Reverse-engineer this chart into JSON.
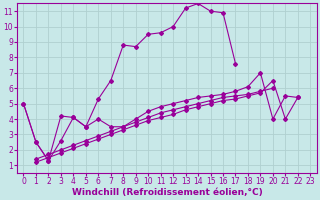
{
  "background_color": "#c8e8e8",
  "line_color": "#990099",
  "grid_color": "#b0d0d0",
  "xlabel": "Windchill (Refroidissement éolien,°C)",
  "xlabel_fontsize": 6.5,
  "tick_fontsize": 5.5,
  "xlim": [
    -0.5,
    23.5
  ],
  "ylim": [
    0.5,
    11.5
  ],
  "yticks": [
    1,
    2,
    3,
    4,
    5,
    6,
    7,
    8,
    9,
    10,
    11
  ],
  "xticks": [
    0,
    1,
    2,
    3,
    4,
    5,
    6,
    7,
    8,
    9,
    10,
    11,
    12,
    13,
    14,
    15,
    16,
    17,
    18,
    19,
    20,
    21,
    22,
    23
  ],
  "series1_x": [
    0,
    1,
    2,
    3,
    4,
    5,
    6,
    7,
    8,
    9,
    10,
    11,
    12,
    13,
    14,
    15,
    16,
    17,
    18,
    19,
    20,
    21,
    22
  ],
  "series1_y": [
    5.0,
    2.5,
    1.3,
    4.2,
    4.1,
    3.5,
    5.3,
    6.5,
    8.8,
    8.7,
    9.5,
    9.6,
    10.0,
    11.2,
    11.5,
    11.0,
    10.9,
    7.6,
    null,
    null,
    null,
    null,
    null
  ],
  "series2_x": [
    0,
    1,
    2,
    3,
    4,
    5,
    6,
    7,
    8,
    9,
    10,
    11,
    12,
    13,
    14,
    15,
    16,
    17,
    18,
    19,
    20,
    21,
    22
  ],
  "series2_y": [
    5.0,
    2.5,
    1.3,
    2.6,
    4.1,
    3.5,
    4.0,
    3.5,
    3.5,
    4.0,
    4.5,
    4.8,
    5.0,
    5.2,
    5.4,
    5.5,
    5.6,
    5.8,
    6.1,
    7.0,
    4.0,
    5.5,
    5.4
  ],
  "series3_x": [
    1,
    2,
    3,
    4,
    5,
    6,
    7,
    8,
    9,
    10,
    11,
    12,
    13,
    14,
    15,
    16,
    17,
    18,
    19,
    20,
    21,
    22
  ],
  "series3_y": [
    1.4,
    1.7,
    2.0,
    2.3,
    2.6,
    2.9,
    3.2,
    3.5,
    3.8,
    4.1,
    4.4,
    4.6,
    4.8,
    5.0,
    5.2,
    5.4,
    5.5,
    5.6,
    5.8,
    6.0,
    null,
    null
  ],
  "series4_x": [
    1,
    2,
    3,
    4,
    5,
    6,
    7,
    8,
    9,
    10,
    11,
    12,
    13,
    14,
    15,
    16,
    17,
    18,
    19,
    20,
    21,
    22
  ],
  "series4_y": [
    1.2,
    1.5,
    1.8,
    2.1,
    2.4,
    2.7,
    3.0,
    3.3,
    3.6,
    3.9,
    4.1,
    4.3,
    4.6,
    4.8,
    5.0,
    5.2,
    5.3,
    5.5,
    5.7,
    6.5,
    4.0,
    5.4
  ]
}
